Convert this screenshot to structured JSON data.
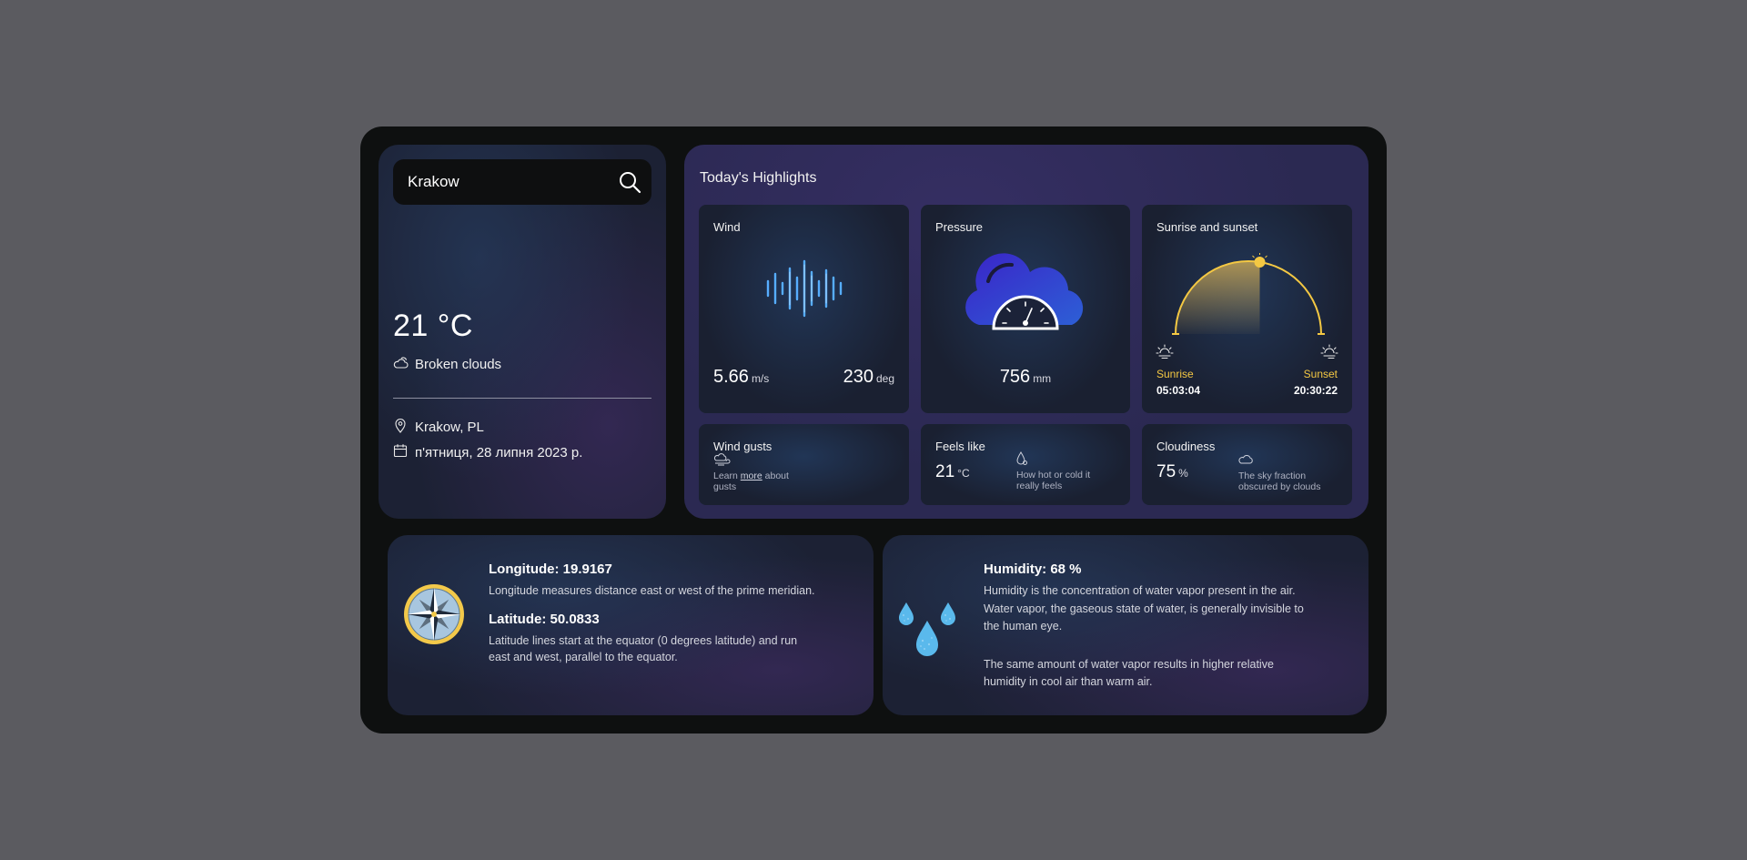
{
  "search": {
    "value": "Krakow",
    "icon": "search-icon"
  },
  "current": {
    "temperature": "21 °C",
    "description": "Broken clouds",
    "location": "Krakow, PL",
    "date": "п'ятниця, 28 липня 2023 р."
  },
  "highlights": {
    "title": "Today's Highlights",
    "wind": {
      "label": "Wind",
      "speed": "5.66",
      "speed_unit": "m/s",
      "direction": "230",
      "direction_unit": "deg"
    },
    "pressure": {
      "label": "Pressure",
      "value": "756",
      "unit": "mm"
    },
    "sun": {
      "label": "Sunrise and sunset",
      "sunrise_label": "Sunrise",
      "sunrise_time": "05:03:04",
      "sunset_label": "Sunset",
      "sunset_time": "20:30:22",
      "day_progress": 0.55
    },
    "gusts": {
      "label": "Wind gusts",
      "note_prefix": "Learn ",
      "note_link": "more",
      "note_suffix": " about",
      "note_line2": "gusts"
    },
    "feels_like": {
      "label": "Feels like",
      "value": "21",
      "unit": "°C",
      "note_line1": "How hot or cold it",
      "note_line2": "really feels"
    },
    "cloudiness": {
      "label": "Cloudiness",
      "value": "75",
      "unit": "%",
      "note_line1": "The sky fraction",
      "note_line2": "obscured by clouds"
    }
  },
  "geo": {
    "longitude_title": "Longitude: 19.9167",
    "longitude_text": "Longitude measures distance east or west of the prime meridian.",
    "latitude_title": "Latitude: 50.0833",
    "latitude_text_line1": "Latitude lines start at the equator (0 degrees latitude) and run",
    "latitude_text_line2": "east and west, parallel to the equator."
  },
  "humidity": {
    "title": "Humidity: 68 %",
    "text_line1": "Humidity is the concentration of water vapor present in the air.",
    "text_line2": "Water vapor, the gaseous state of water, is generally invisible to",
    "text_line3": "the human eye.",
    "text2_line1": "The same amount of water vapor results in higher relative",
    "text2_line2": "humidity in cool air than warm air."
  },
  "colors": {
    "accent_sun": "#f4c843",
    "wind_blue": "#4aa3ff",
    "drop_blue": "#6fc3f0"
  }
}
